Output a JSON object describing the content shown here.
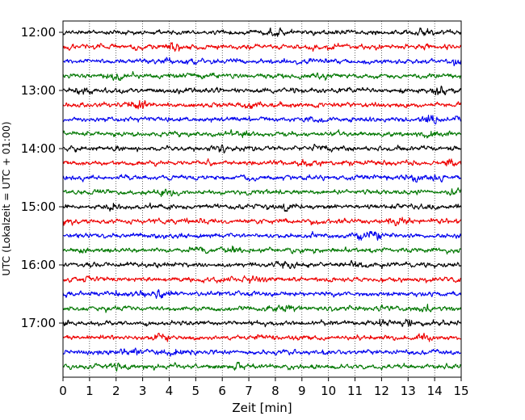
{
  "chart_data": {
    "type": "line",
    "title": "",
    "xlabel": "Zeit  [min]",
    "ylabel": "UTC (Lokalzeit = UTC + 01:00)",
    "xlim": [
      0,
      15
    ],
    "x_ticks": [
      "0",
      "1",
      "2",
      "3",
      "4",
      "5",
      "6",
      "7",
      "8",
      "9",
      "10",
      "11",
      "12",
      "13",
      "14",
      "15"
    ],
    "y_ticks": [
      "12:00",
      "13:00",
      "14:00",
      "15:00",
      "16:00",
      "17:00"
    ],
    "grid": "vertical dotted",
    "trace_colors": [
      "#000000",
      "#ee0000",
      "#0000ee",
      "#007700"
    ],
    "series": [
      {
        "start": "12:00",
        "color": "#000000"
      },
      {
        "start": "12:15",
        "color": "#ee0000"
      },
      {
        "start": "12:30",
        "color": "#0000ee"
      },
      {
        "start": "12:45",
        "color": "#007700"
      },
      {
        "start": "13:00",
        "color": "#000000"
      },
      {
        "start": "13:15",
        "color": "#ee0000"
      },
      {
        "start": "13:30",
        "color": "#0000ee"
      },
      {
        "start": "13:45",
        "color": "#007700"
      },
      {
        "start": "14:00",
        "color": "#000000"
      },
      {
        "start": "14:15",
        "color": "#ee0000"
      },
      {
        "start": "14:30",
        "color": "#0000ee"
      },
      {
        "start": "14:45",
        "color": "#007700"
      },
      {
        "start": "15:00",
        "color": "#000000"
      },
      {
        "start": "15:15",
        "color": "#ee0000"
      },
      {
        "start": "15:30",
        "color": "#0000ee"
      },
      {
        "start": "15:45",
        "color": "#007700"
      },
      {
        "start": "16:00",
        "color": "#000000"
      },
      {
        "start": "16:15",
        "color": "#ee0000"
      },
      {
        "start": "16:30",
        "color": "#0000ee"
      },
      {
        "start": "16:45",
        "color": "#007700"
      },
      {
        "start": "17:00",
        "color": "#000000"
      },
      {
        "start": "17:15",
        "color": "#ee0000"
      },
      {
        "start": "17:30",
        "color": "#0000ee"
      },
      {
        "start": "17:45",
        "color": "#007700"
      }
    ]
  }
}
